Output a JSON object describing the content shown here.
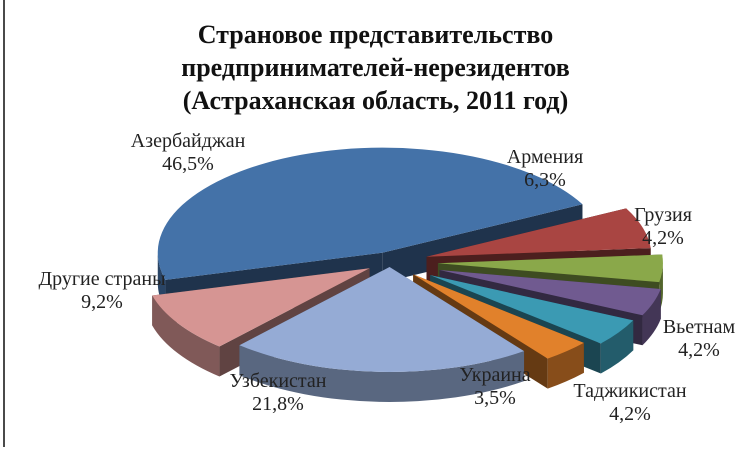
{
  "chart_data": {
    "type": "pie",
    "title_lines": [
      "Страновое представительство",
      "предпринимателей-нерезидентов",
      "(Астраханская область, 2011 год)"
    ],
    "slices": [
      {
        "name": "Азербайджан",
        "value": 46.5,
        "value_label": "46,5%",
        "color": "#4472a8"
      },
      {
        "name": "Армения",
        "value": 6.3,
        "value_label": "6,3%",
        "color": "#a94542"
      },
      {
        "name": "Грузия",
        "value": 4.2,
        "value_label": "4,2%",
        "color": "#8aa84a"
      },
      {
        "name": "Вьетнам",
        "value": 4.2,
        "value_label": "4,2%",
        "color": "#705a90"
      },
      {
        "name": "Таджикистан",
        "value": 4.2,
        "value_label": "4,2%",
        "color": "#3b9ab3"
      },
      {
        "name": "Украина",
        "value": 3.5,
        "value_label": "3,5%",
        "color": "#e1812b"
      },
      {
        "name": "Узбекистан",
        "value": 21.8,
        "value_label": "21,8%",
        "color": "#95abd5"
      },
      {
        "name": "Другие страны",
        "value": 9.2,
        "value_label": "9,2%",
        "color": "#d69593"
      }
    ]
  }
}
